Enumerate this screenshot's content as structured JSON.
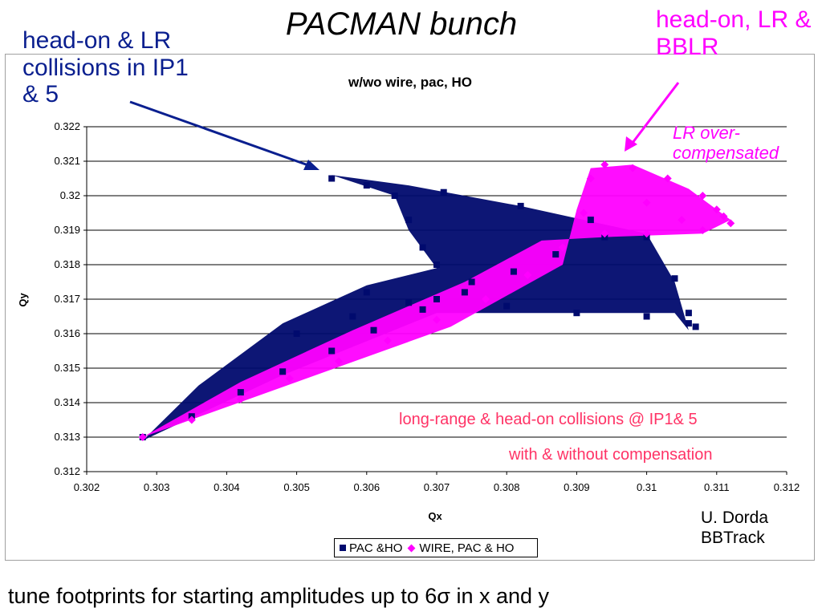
{
  "slide": {
    "title": "PACMAN bunch",
    "callout_blue": "head-on & LR collisions in IP1 &  5",
    "callout_magenta": "head-on, LR & BBLR",
    "lr_over": "LR over-compensated",
    "note_line1": "long-range & head-on collisions @ IP1& 5",
    "note_line2": "with & without compensation",
    "credit_line1": "U. Dorda",
    "credit_line2": "BBTrack",
    "caption": "tune footprints for starting amplitudes up to 6σ in x and y"
  },
  "chart_data": {
    "type": "scatter",
    "title": "w/wo wire, pac, HO",
    "xlabel": "Qx",
    "ylabel": "Qy",
    "xlim": [
      0.302,
      0.312
    ],
    "ylim": [
      0.312,
      0.322
    ],
    "xticks": [
      "0.302",
      "0.303",
      "0.304",
      "0.305",
      "0.306",
      "0.307",
      "0.308",
      "0.309",
      "0.31",
      "0.311",
      "0.312"
    ],
    "yticks": [
      "0.312",
      "0.313",
      "0.314",
      "0.315",
      "0.316",
      "0.317",
      "0.318",
      "0.319",
      "0.32",
      "0.321",
      "0.322"
    ],
    "grid": "horizontal",
    "legend_position": "bottom",
    "series": [
      {
        "name": "PAC &HO",
        "color": "#000a6e",
        "marker": "square",
        "points": [
          [
            0.3028,
            0.313
          ],
          [
            0.3035,
            0.3136
          ],
          [
            0.3042,
            0.3143
          ],
          [
            0.3048,
            0.3149
          ],
          [
            0.3055,
            0.3155
          ],
          [
            0.3061,
            0.3161
          ],
          [
            0.3068,
            0.3167
          ],
          [
            0.3074,
            0.3172
          ],
          [
            0.3081,
            0.3178
          ],
          [
            0.3087,
            0.3183
          ],
          [
            0.3094,
            0.3188
          ],
          [
            0.3055,
            0.3205
          ],
          [
            0.306,
            0.3203
          ],
          [
            0.3064,
            0.32
          ],
          [
            0.3066,
            0.3193
          ],
          [
            0.3068,
            0.3185
          ],
          [
            0.307,
            0.318
          ],
          [
            0.3075,
            0.3175
          ],
          [
            0.3071,
            0.3201
          ],
          [
            0.3082,
            0.3197
          ],
          [
            0.3092,
            0.3193
          ],
          [
            0.31,
            0.3188
          ],
          [
            0.3104,
            0.3176
          ],
          [
            0.3106,
            0.3166
          ],
          [
            0.3107,
            0.3162
          ],
          [
            0.306,
            0.3172
          ],
          [
            0.307,
            0.317
          ],
          [
            0.308,
            0.3168
          ],
          [
            0.309,
            0.3166
          ],
          [
            0.31,
            0.3165
          ],
          [
            0.3106,
            0.3163
          ],
          [
            0.305,
            0.316
          ],
          [
            0.3058,
            0.3165
          ],
          [
            0.3066,
            0.3169
          ]
        ]
      },
      {
        "name": "WIRE, PAC & HO",
        "color": "#ff00ff",
        "marker": "diamond",
        "points": [
          [
            0.3028,
            0.313
          ],
          [
            0.3035,
            0.3135
          ],
          [
            0.3042,
            0.3141
          ],
          [
            0.3049,
            0.3147
          ],
          [
            0.3056,
            0.3152
          ],
          [
            0.3063,
            0.3158
          ],
          [
            0.307,
            0.3164
          ],
          [
            0.3077,
            0.317
          ],
          [
            0.3083,
            0.3177
          ],
          [
            0.3088,
            0.3185
          ],
          [
            0.3091,
            0.3195
          ],
          [
            0.3092,
            0.3205
          ],
          [
            0.3094,
            0.3209
          ],
          [
            0.3098,
            0.3208
          ],
          [
            0.3103,
            0.3205
          ],
          [
            0.3108,
            0.32
          ],
          [
            0.3111,
            0.3194
          ],
          [
            0.3112,
            0.3192
          ],
          [
            0.3108,
            0.319
          ],
          [
            0.31,
            0.3189
          ],
          [
            0.3094,
            0.3189
          ],
          [
            0.311,
            0.3196
          ],
          [
            0.3105,
            0.3193
          ],
          [
            0.31,
            0.3198
          ]
        ]
      }
    ]
  }
}
